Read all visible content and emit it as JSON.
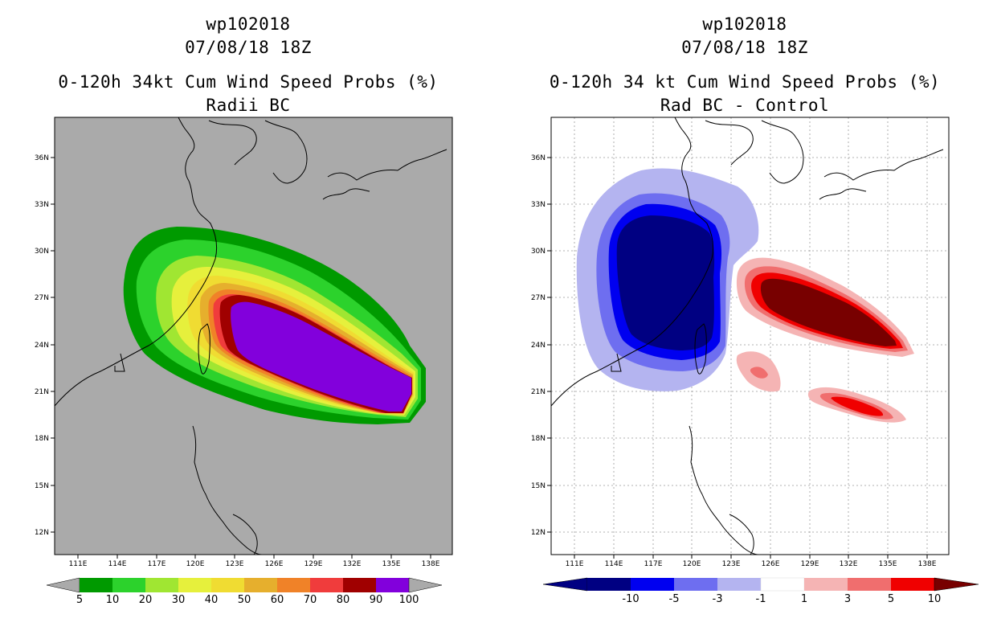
{
  "left": {
    "title_line1": "wp102018",
    "title_line2": "07/08/18 18Z",
    "title_line3": "0-120h 34kt Cum Wind Speed Probs (%)",
    "title_line4": "Radii BC",
    "lat_labels": [
      "36N",
      "33N",
      "30N",
      "27N",
      "24N",
      "21N",
      "18N",
      "15N",
      "12N"
    ],
    "lon_labels": [
      "111E",
      "114E",
      "117E",
      "120E",
      "123E",
      "126E",
      "129E",
      "132E",
      "135E",
      "138E"
    ],
    "colorbar_labels": [
      "5",
      "10",
      "20",
      "30",
      "40",
      "50",
      "60",
      "70",
      "80",
      "90",
      "100"
    ],
    "colorbar_colors": [
      "#009a00",
      "#2cd22c",
      "#a0e632",
      "#e6f03c",
      "#f0dc32",
      "#e6af2d",
      "#f08228",
      "#f03c3c",
      "#a00000",
      "#8200dc"
    ],
    "background_color": "#aaaaaa"
  },
  "right": {
    "title_line1": "wp102018",
    "title_line2": "07/08/18 18Z",
    "title_line3": "0-120h 34 kt Cum Wind Speed Probs (%)",
    "title_line4": "Rad BC - Control",
    "lat_labels": [
      "36N",
      "33N",
      "30N",
      "27N",
      "24N",
      "21N",
      "18N",
      "15N",
      "12N"
    ],
    "lon_labels": [
      "111E",
      "114E",
      "117E",
      "120E",
      "123E",
      "126E",
      "129E",
      "132E",
      "135E",
      "138E"
    ],
    "colorbar_labels": [
      "-10",
      "-5",
      "-3",
      "-1",
      "1",
      "3",
      "5",
      "10"
    ],
    "colorbar_colors": [
      "#000082",
      "#0000f0",
      "#6e6ef0",
      "#b4b4f0",
      "#ffffff",
      "#f5b4b4",
      "#f06e6e",
      "#f00000"
    ],
    "colorbar_end_colors": [
      "#000082",
      "#780000"
    ]
  }
}
